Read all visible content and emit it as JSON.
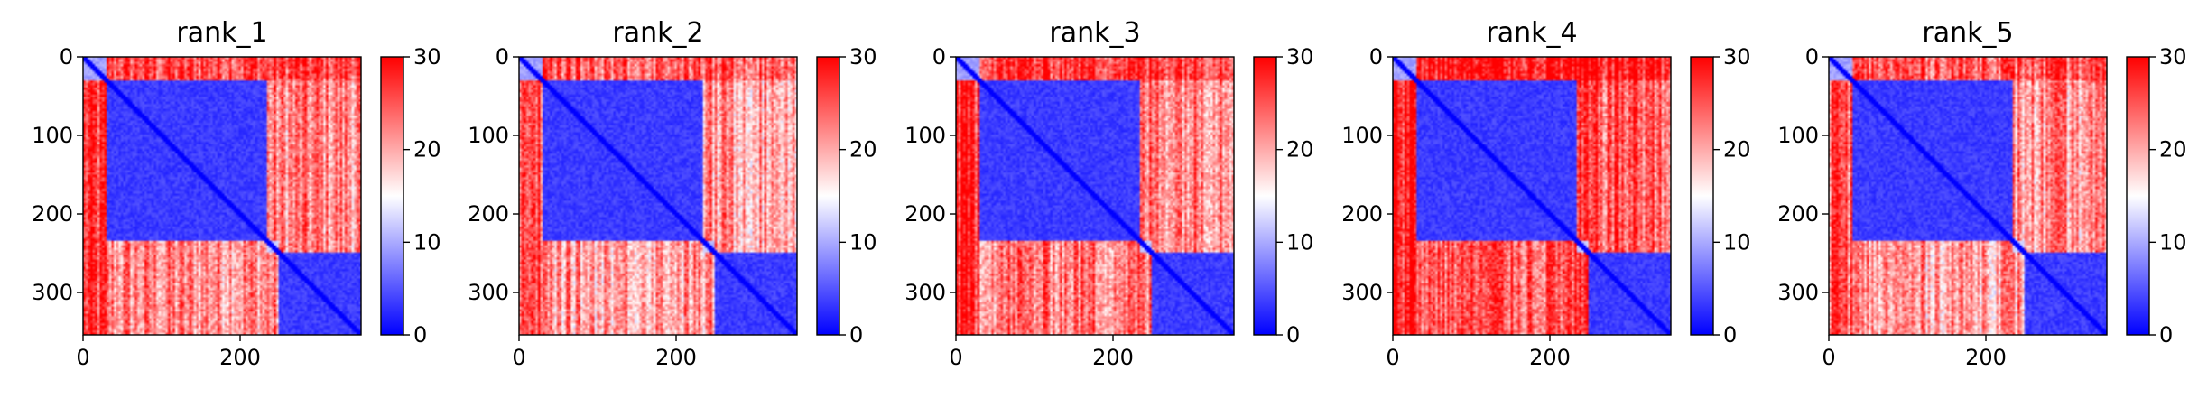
{
  "chart_data": [
    {
      "type": "heatmap",
      "title": "rank_1",
      "x_ticks": [
        0,
        200
      ],
      "y_ticks": [
        0,
        100,
        200,
        300
      ],
      "xlim": [
        0,
        354
      ],
      "ylim": [
        354,
        0
      ],
      "colorbar": {
        "ticks": [
          0,
          10,
          20,
          30
        ],
        "range": [
          0,
          30
        ],
        "colormap": [
          "#0000ff",
          "#ffffff",
          "#ff0000"
        ]
      },
      "blocks": [
        {
          "start": 0,
          "end": 30,
          "mean": 8
        },
        {
          "start": 30,
          "end": 235,
          "mean": 2
        },
        {
          "start": 235,
          "end": 250,
          "mean": 10
        },
        {
          "start": 250,
          "end": 354,
          "mean": 2
        }
      ],
      "off_block_level": 22
    },
    {
      "type": "heatmap",
      "title": "rank_2",
      "x_ticks": [
        0,
        200
      ],
      "y_ticks": [
        0,
        100,
        200,
        300
      ],
      "xlim": [
        0,
        354
      ],
      "ylim": [
        354,
        0
      ],
      "colorbar": {
        "ticks": [
          0,
          10,
          20,
          30
        ],
        "range": [
          0,
          30
        ],
        "colormap": [
          "#0000ff",
          "#ffffff",
          "#ff0000"
        ]
      },
      "blocks": [
        {
          "start": 0,
          "end": 30,
          "mean": 8
        },
        {
          "start": 30,
          "end": 235,
          "mean": 2
        },
        {
          "start": 235,
          "end": 250,
          "mean": 10
        },
        {
          "start": 250,
          "end": 354,
          "mean": 2
        }
      ],
      "off_block_level": 21
    },
    {
      "type": "heatmap",
      "title": "rank_3",
      "x_ticks": [
        0,
        200
      ],
      "y_ticks": [
        0,
        100,
        200,
        300
      ],
      "xlim": [
        0,
        354
      ],
      "ylim": [
        354,
        0
      ],
      "colorbar": {
        "ticks": [
          0,
          10,
          20,
          30
        ],
        "range": [
          0,
          30
        ],
        "colormap": [
          "#0000ff",
          "#ffffff",
          "#ff0000"
        ]
      },
      "blocks": [
        {
          "start": 0,
          "end": 30,
          "mean": 8
        },
        {
          "start": 30,
          "end": 235,
          "mean": 2
        },
        {
          "start": 235,
          "end": 250,
          "mean": 10
        },
        {
          "start": 250,
          "end": 354,
          "mean": 2
        }
      ],
      "off_block_level": 23
    },
    {
      "type": "heatmap",
      "title": "rank_4",
      "x_ticks": [
        0,
        200
      ],
      "y_ticks": [
        0,
        100,
        200,
        300
      ],
      "xlim": [
        0,
        354
      ],
      "ylim": [
        354,
        0
      ],
      "colorbar": {
        "ticks": [
          0,
          10,
          20,
          30
        ],
        "range": [
          0,
          30
        ],
        "colormap": [
          "#0000ff",
          "#ffffff",
          "#ff0000"
        ]
      },
      "blocks": [
        {
          "start": 0,
          "end": 30,
          "mean": 8
        },
        {
          "start": 30,
          "end": 235,
          "mean": 2
        },
        {
          "start": 235,
          "end": 250,
          "mean": 10
        },
        {
          "start": 250,
          "end": 354,
          "mean": 2
        }
      ],
      "off_block_level": 25
    },
    {
      "type": "heatmap",
      "title": "rank_5",
      "x_ticks": [
        0,
        200
      ],
      "y_ticks": [
        0,
        100,
        200,
        300
      ],
      "xlim": [
        0,
        354
      ],
      "ylim": [
        354,
        0
      ],
      "colorbar": {
        "ticks": [
          0,
          10,
          20,
          30
        ],
        "range": [
          0,
          30
        ],
        "colormap": [
          "#0000ff",
          "#ffffff",
          "#ff0000"
        ]
      },
      "blocks": [
        {
          "start": 0,
          "end": 30,
          "mean": 8
        },
        {
          "start": 30,
          "end": 235,
          "mean": 2
        },
        {
          "start": 235,
          "end": 250,
          "mean": 10
        },
        {
          "start": 250,
          "end": 354,
          "mean": 2
        }
      ],
      "off_block_level": 21
    }
  ]
}
